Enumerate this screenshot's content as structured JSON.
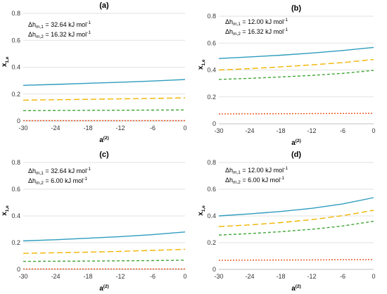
{
  "chart_data": [
    {
      "type": "line",
      "title": "(a)",
      "xlabel": "a",
      "xlabel_sup": "(2)",
      "ylabel": "x",
      "ylabel_sub": "1,e",
      "xlim": [
        -30,
        0
      ],
      "ylim": [
        0,
        0.8
      ],
      "xticks": [
        "-30",
        "-24",
        "-18",
        "-12",
        "-6",
        "0"
      ],
      "yticks": [
        "0",
        "0.2",
        "0.4",
        "0.6",
        "0.8"
      ],
      "annotation": [
        {
          "pre": "Δh",
          "sub": "m,1",
          "post": " = 32.64 kJ mol",
          "sup": "-1"
        },
        {
          "pre": "Δh",
          "sub": "m,2",
          "post": " = 16.32 kJ mol",
          "sup": "-1"
        }
      ],
      "x": [
        -30,
        -24,
        -18,
        -12,
        -6,
        0
      ],
      "series": [
        {
          "values": [
            0.265,
            0.272,
            0.28,
            0.288,
            0.297,
            0.308
          ],
          "color": "#2E9CBE",
          "dash": "solid"
        },
        {
          "values": [
            0.155,
            0.158,
            0.161,
            0.164,
            0.168,
            0.172
          ],
          "color": "#F2B400",
          "dash": "long"
        },
        {
          "values": [
            0.077,
            0.078,
            0.079,
            0.08,
            0.081,
            0.082
          ],
          "color": "#3FA535",
          "dash": "medium"
        },
        {
          "values": [
            0.003,
            0.003,
            0.003,
            0.003,
            0.003,
            0.003
          ],
          "color": "#E8541E",
          "dash": "short"
        }
      ]
    },
    {
      "type": "line",
      "title": "(b)",
      "xlabel": "a",
      "xlabel_sup": "(2)",
      "ylabel": "x",
      "ylabel_sub": "1,e",
      "xlim": [
        -30,
        0
      ],
      "ylim": [
        0,
        0.8
      ],
      "xticks": [
        "-30",
        "-24",
        "-18",
        "-12",
        "-6",
        "0"
      ],
      "yticks": [
        "0",
        "0.2",
        "0.4",
        "0.6",
        "0.8"
      ],
      "annotation": [
        {
          "pre": "Δh",
          "sub": "m,1",
          "post": " = 12.00 kJ mol",
          "sup": "-1"
        },
        {
          "pre": "Δh",
          "sub": "m,2",
          "post": " = 16.32 kJ mol",
          "sup": "-1"
        }
      ],
      "x": [
        -30,
        -24,
        -18,
        -12,
        -6,
        0
      ],
      "series": [
        {
          "values": [
            0.485,
            0.497,
            0.51,
            0.526,
            0.545,
            0.568
          ],
          "color": "#2E9CBE",
          "dash": "solid"
        },
        {
          "values": [
            0.4,
            0.41,
            0.423,
            0.438,
            0.455,
            0.478
          ],
          "color": "#F2B400",
          "dash": "long"
        },
        {
          "values": [
            0.33,
            0.338,
            0.348,
            0.36,
            0.375,
            0.397
          ],
          "color": "#3FA535",
          "dash": "medium"
        },
        {
          "values": [
            0.073,
            0.074,
            0.075,
            0.076,
            0.077,
            0.078
          ],
          "color": "#E8541E",
          "dash": "short"
        }
      ]
    },
    {
      "type": "line",
      "title": "(c)",
      "xlabel": "a",
      "xlabel_sup": "(2)",
      "ylabel": "x",
      "ylabel_sub": "1,e",
      "xlim": [
        -30,
        0
      ],
      "ylim": [
        0,
        0.8
      ],
      "xticks": [
        "-30",
        "-24",
        "-18",
        "-12",
        "-6",
        "0"
      ],
      "yticks": [
        "0",
        "0.2",
        "0.4",
        "0.6",
        "0.8"
      ],
      "annotation": [
        {
          "pre": "Δh",
          "sub": "m,1",
          "post": " = 32.64 kJ mol",
          "sup": "-1"
        },
        {
          "pre": "Δh",
          "sub": "m,2",
          "post": " = 6.00 kJ mol",
          "sup": "-1"
        }
      ],
      "x": [
        -30,
        -24,
        -18,
        -12,
        -6,
        0
      ],
      "series": [
        {
          "values": [
            0.213,
            0.222,
            0.233,
            0.245,
            0.26,
            0.28
          ],
          "color": "#2E9CBE",
          "dash": "solid"
        },
        {
          "values": [
            0.12,
            0.124,
            0.129,
            0.135,
            0.142,
            0.15
          ],
          "color": "#F2B400",
          "dash": "long"
        },
        {
          "values": [
            0.06,
            0.061,
            0.062,
            0.064,
            0.066,
            0.069
          ],
          "color": "#3FA535",
          "dash": "medium"
        },
        {
          "values": [
            0.003,
            0.003,
            0.003,
            0.003,
            0.003,
            0.003
          ],
          "color": "#E8541E",
          "dash": "short"
        }
      ]
    },
    {
      "type": "line",
      "title": "(d)",
      "xlabel": "a",
      "xlabel_sup": "(2)",
      "ylabel": "x",
      "ylabel_sub": "1,e",
      "xlim": [
        -30,
        0
      ],
      "ylim": [
        0,
        0.8
      ],
      "xticks": [
        "-30",
        "-24",
        "-18",
        "-12",
        "-6",
        "0"
      ],
      "yticks": [
        "0",
        "0.2",
        "0.4",
        "0.6",
        "0.8"
      ],
      "annotation": [
        {
          "pre": "Δh",
          "sub": "m,1",
          "post": " = 12.00 kJ mol",
          "sup": "-1"
        },
        {
          "pre": "Δh",
          "sub": "m,2",
          "post": " = 6.00 kJ mol",
          "sup": "-1"
        }
      ],
      "x": [
        -30,
        -24,
        -18,
        -12,
        -6,
        0
      ],
      "series": [
        {
          "values": [
            0.4,
            0.415,
            0.433,
            0.457,
            0.49,
            0.537
          ],
          "color": "#2E9CBE",
          "dash": "solid"
        },
        {
          "values": [
            0.32,
            0.333,
            0.35,
            0.372,
            0.402,
            0.442
          ],
          "color": "#F2B400",
          "dash": "long"
        },
        {
          "values": [
            0.257,
            0.268,
            0.282,
            0.3,
            0.325,
            0.36
          ],
          "color": "#3FA535",
          "dash": "medium"
        },
        {
          "values": [
            0.068,
            0.069,
            0.07,
            0.071,
            0.072,
            0.073
          ],
          "color": "#E8541E",
          "dash": "short"
        }
      ]
    }
  ]
}
